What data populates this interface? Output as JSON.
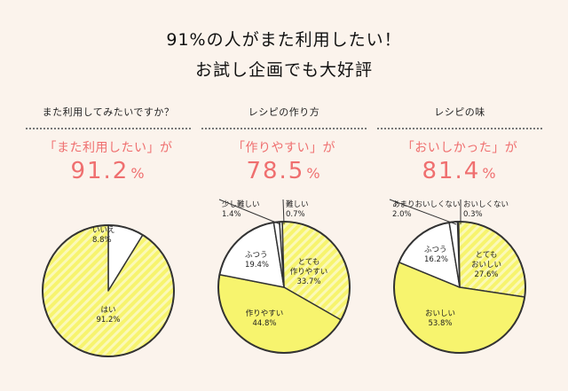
{
  "headline": {
    "line1": "91%の人がまた利用したい！",
    "line2": "お試し企画でも大好評"
  },
  "colors": {
    "background": "#fbf3ec",
    "accent": "#ef6f6f",
    "yellow": "#f7f46e",
    "stripe": "#fbf9b8",
    "white": "#ffffff",
    "outline": "#333333"
  },
  "panels": [
    {
      "question": "また利用してみたいですか？",
      "highlight": "「また利用したい」が",
      "stat_value": "91.2",
      "stat_unit": "%"
    },
    {
      "question": "レシピの作り方",
      "highlight": "「作りやすい」が",
      "stat_value": "78.5",
      "stat_unit": "%"
    },
    {
      "question": "レシピの味",
      "highlight": "「おいしかった」が",
      "stat_value": "81.4",
      "stat_unit": "%"
    }
  ],
  "chart_data": [
    {
      "type": "pie",
      "title": "また利用してみたいですか？",
      "slices": [
        {
          "label": "いいえ",
          "value_text": "8.8%",
          "value": 8.8
        },
        {
          "label": "はい",
          "value_text": "91.2%",
          "value": 91.2
        }
      ]
    },
    {
      "type": "pie",
      "title": "レシピの作り方",
      "slices": [
        {
          "label": "難しい",
          "value_text": "0.7%",
          "value": 0.7
        },
        {
          "label": "とても\n作りやすい",
          "value_text": "33.7%",
          "value": 33.7
        },
        {
          "label": "作りやすい",
          "value_text": "44.8%",
          "value": 44.8
        },
        {
          "label": "ふつう",
          "value_text": "19.4%",
          "value": 19.4
        },
        {
          "label": "少し難しい",
          "value_text": "1.4%",
          "value": 1.4
        }
      ]
    },
    {
      "type": "pie",
      "title": "レシピの味",
      "slices": [
        {
          "label": "おいしくない",
          "value_text": "0.3%",
          "value": 0.3
        },
        {
          "label": "とても\nおいしい",
          "value_text": "27.6%",
          "value": 27.6
        },
        {
          "label": "おいしい",
          "value_text": "53.8%",
          "value": 53.8
        },
        {
          "label": "ふつう",
          "value_text": "16.2%",
          "value": 16.2
        },
        {
          "label": "あまりおいしくない",
          "value_text": "2.0%",
          "value": 2.0
        }
      ]
    }
  ]
}
